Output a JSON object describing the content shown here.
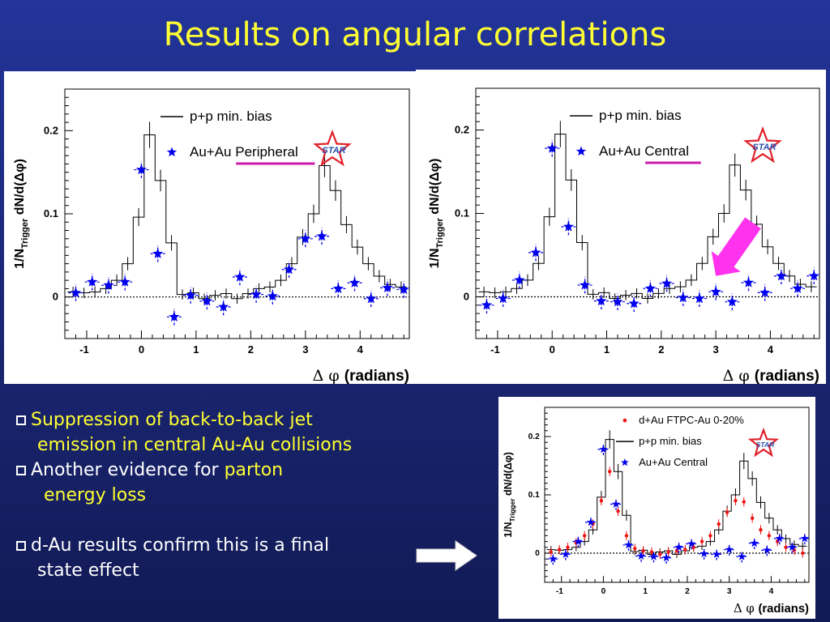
{
  "slide": {
    "title": "Results on angular correlations",
    "bullets": [
      {
        "lines": [
          {
            "parts": [
              {
                "t": "Suppression of back-to-back jet",
                "hl": true
              }
            ]
          },
          {
            "parts": [
              {
                "t": "emission in central Au-Au collisions",
                "hl": true
              }
            ]
          }
        ]
      },
      {
        "lines": [
          {
            "parts": [
              {
                "t": "Another evidence for ",
                "hl": false
              },
              {
                "t": "parton",
                "hl": true
              }
            ]
          },
          {
            "parts": [
              {
                "t": "energy loss",
                "hl": true
              }
            ]
          }
        ]
      },
      {
        "gap": true
      },
      {
        "lines": [
          {
            "parts": [
              {
                "t": "d-Au results confirm this is a final",
                "hl": false
              }
            ]
          },
          {
            "parts": [
              {
                "t": "state effect",
                "hl": false
              }
            ]
          }
        ]
      }
    ]
  },
  "colors": {
    "title": "#ffff33",
    "highlight": "#ffff33",
    "star": "#0000ee",
    "dau": "#ee1111",
    "magenta": "#cc1aaa",
    "arrow": "#ff33ee",
    "logo": "#e0202a",
    "logo_text": "#2a4fb0"
  },
  "chart_data": [
    {
      "type": "scatter",
      "xlabel": "Δ φ (radians)",
      "ylabel": "1/N_Trigger dN/d(Δφ)",
      "xlim": [
        -1.4,
        4.9
      ],
      "ylim": [
        -0.05,
        0.25
      ],
      "xticks": [
        -1,
        0,
        1,
        2,
        3,
        4
      ],
      "yticks": [
        0,
        0.1,
        0.2
      ],
      "logo": "STAR",
      "legend": [
        {
          "label": "p+p min. bias",
          "marker": "line"
        },
        {
          "label": "Au+Au Peripheral",
          "marker": "star",
          "underline": "Peripheral"
        }
      ],
      "series": [
        {
          "name": "p+p min. bias",
          "kind": "histogram",
          "x": [
            -1.25,
            -1.05,
            -0.85,
            -0.65,
            -0.45,
            -0.25,
            -0.05,
            0.15,
            0.35,
            0.55,
            0.75,
            0.95,
            1.15,
            1.35,
            1.55,
            1.75,
            1.95,
            2.15,
            2.35,
            2.55,
            2.75,
            2.95,
            3.15,
            3.35,
            3.55,
            3.75,
            3.95,
            4.15,
            4.35,
            4.55,
            4.75
          ],
          "y": [
            0.006,
            0.005,
            0.006,
            0.01,
            0.02,
            0.04,
            0.096,
            0.195,
            0.14,
            0.065,
            0.003,
            0.005,
            -0.002,
            0.002,
            0.004,
            -0.002,
            0.004,
            0.01,
            0.012,
            0.02,
            0.04,
            0.072,
            0.1,
            0.158,
            0.128,
            0.087,
            0.06,
            0.04,
            0.025,
            0.015,
            0.012
          ]
        },
        {
          "name": "Au+Au Peripheral",
          "kind": "stars",
          "x": [
            -1.2,
            -0.9,
            -0.6,
            -0.3,
            0.0,
            0.3,
            0.6,
            0.9,
            1.2,
            1.5,
            1.8,
            2.1,
            2.4,
            2.7,
            3.0,
            3.3,
            3.6,
            3.9,
            4.2,
            4.5,
            4.8
          ],
          "y": [
            0.005,
            0.018,
            0.014,
            0.018,
            0.153,
            0.052,
            -0.024,
            0.002,
            -0.005,
            -0.012,
            0.024,
            0.003,
            0.001,
            0.033,
            0.07,
            0.073,
            0.01,
            0.017,
            -0.002,
            0.011,
            0.009
          ]
        }
      ]
    },
    {
      "type": "scatter",
      "xlabel": "Δ φ (radians)",
      "ylabel": "1/N_Trigger dN/d(Δφ)",
      "xlim": [
        -1.4,
        4.9
      ],
      "ylim": [
        -0.05,
        0.25
      ],
      "xticks": [
        -1,
        0,
        1,
        2,
        3,
        4
      ],
      "yticks": [
        0,
        0.1,
        0.2
      ],
      "logo": "STAR",
      "legend": [
        {
          "label": "p+p min. bias",
          "marker": "line"
        },
        {
          "label": "Au+Au Central",
          "marker": "star",
          "underline": "Central"
        }
      ],
      "annotation": {
        "type": "arrow",
        "color": "magenta",
        "points_to_x": 3.0
      },
      "series": [
        {
          "name": "p+p min. bias",
          "kind": "histogram",
          "x": [
            -1.25,
            -1.05,
            -0.85,
            -0.65,
            -0.45,
            -0.25,
            -0.05,
            0.15,
            0.35,
            0.55,
            0.75,
            0.95,
            1.15,
            1.35,
            1.55,
            1.75,
            1.95,
            2.15,
            2.35,
            2.55,
            2.75,
            2.95,
            3.15,
            3.35,
            3.55,
            3.75,
            3.95,
            4.15,
            4.35,
            4.55,
            4.75
          ],
          "y": [
            0.006,
            0.005,
            0.006,
            0.01,
            0.02,
            0.04,
            0.096,
            0.195,
            0.14,
            0.065,
            0.003,
            0.005,
            -0.002,
            0.002,
            0.004,
            -0.002,
            0.004,
            0.01,
            0.012,
            0.02,
            0.04,
            0.072,
            0.1,
            0.158,
            0.128,
            0.087,
            0.06,
            0.04,
            0.025,
            0.015,
            0.012
          ]
        },
        {
          "name": "Au+Au Central",
          "kind": "stars",
          "x": [
            -1.2,
            -0.9,
            -0.6,
            -0.3,
            0.0,
            0.3,
            0.6,
            0.9,
            1.2,
            1.5,
            1.8,
            2.1,
            2.4,
            2.7,
            3.0,
            3.3,
            3.6,
            3.9,
            4.2,
            4.5,
            4.8
          ],
          "y": [
            -0.01,
            -0.002,
            0.02,
            0.053,
            0.178,
            0.084,
            0.014,
            -0.005,
            -0.006,
            -0.008,
            0.01,
            0.016,
            -0.001,
            -0.002,
            0.006,
            -0.006,
            0.017,
            0.005,
            0.025,
            0.01,
            0.025
          ]
        }
      ]
    },
    {
      "type": "scatter",
      "xlabel": "Δ φ (radians)",
      "ylabel": "1/N_Trigger dN/d(Δφ)",
      "xlim": [
        -1.4,
        4.9
      ],
      "ylim": [
        -0.05,
        0.25
      ],
      "xticks": [
        -1,
        0,
        1,
        2,
        3,
        4
      ],
      "yticks": [
        0,
        0.1,
        0.2
      ],
      "logo": "STAR",
      "legend": [
        {
          "label": "d+Au FTPC-Au 0-20%",
          "marker": "dot"
        },
        {
          "label": "p+p min. bias",
          "marker": "line"
        },
        {
          "label": "Au+Au Central",
          "marker": "star"
        }
      ],
      "series": [
        {
          "name": "p+p min. bias",
          "kind": "histogram",
          "x": [
            -1.25,
            -1.05,
            -0.85,
            -0.65,
            -0.45,
            -0.25,
            -0.05,
            0.15,
            0.35,
            0.55,
            0.75,
            0.95,
            1.15,
            1.35,
            1.55,
            1.75,
            1.95,
            2.15,
            2.35,
            2.55,
            2.75,
            2.95,
            3.15,
            3.35,
            3.55,
            3.75,
            3.95,
            4.15,
            4.35,
            4.55,
            4.75
          ],
          "y": [
            0.006,
            0.005,
            0.006,
            0.01,
            0.02,
            0.04,
            0.096,
            0.195,
            0.14,
            0.065,
            0.003,
            0.005,
            -0.002,
            0.002,
            0.004,
            -0.002,
            0.004,
            0.01,
            0.012,
            0.02,
            0.04,
            0.072,
            0.1,
            0.158,
            0.128,
            0.087,
            0.06,
            0.04,
            0.025,
            0.015,
            0.012
          ]
        },
        {
          "name": "d+Au FTPC-Au 0-20%",
          "kind": "dots",
          "x": [
            -1.25,
            -1.05,
            -0.85,
            -0.65,
            -0.45,
            -0.25,
            -0.05,
            0.15,
            0.35,
            0.55,
            0.75,
            0.95,
            1.15,
            1.35,
            1.55,
            1.75,
            1.95,
            2.15,
            2.35,
            2.55,
            2.75,
            2.95,
            3.15,
            3.35,
            3.55,
            3.75,
            3.95,
            4.15,
            4.35,
            4.55,
            4.75
          ],
          "y": [
            0.002,
            0.006,
            0.01,
            0.018,
            0.03,
            0.05,
            0.09,
            0.14,
            0.072,
            0.03,
            0.008,
            0.004,
            0.002,
            -0.002,
            0.002,
            0.004,
            0.006,
            0.01,
            0.02,
            0.03,
            0.05,
            0.07,
            0.09,
            0.088,
            0.06,
            0.04,
            0.03,
            0.02,
            0.01,
            0.005,
            0.0
          ]
        },
        {
          "name": "Au+Au Central",
          "kind": "stars",
          "x": [
            -1.2,
            -0.9,
            -0.6,
            -0.3,
            0.0,
            0.3,
            0.6,
            0.9,
            1.2,
            1.5,
            1.8,
            2.1,
            2.4,
            2.7,
            3.0,
            3.3,
            3.6,
            3.9,
            4.2,
            4.5,
            4.8
          ],
          "y": [
            -0.01,
            -0.002,
            0.02,
            0.053,
            0.178,
            0.084,
            0.014,
            -0.005,
            -0.006,
            -0.008,
            0.01,
            0.016,
            -0.001,
            -0.002,
            0.006,
            -0.006,
            0.017,
            0.005,
            0.025,
            0.01,
            0.025
          ]
        }
      ]
    }
  ]
}
